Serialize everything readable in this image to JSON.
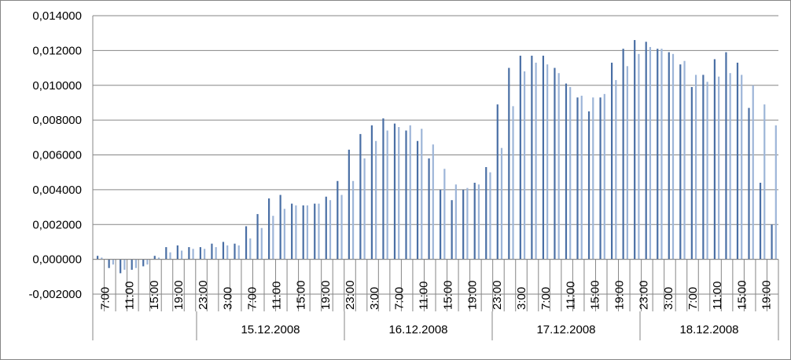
{
  "chart_data": {
    "type": "bar",
    "title": "",
    "xlabel": "",
    "ylabel": "",
    "ylim": [
      -0.002,
      0.014
    ],
    "yticks": [
      "-0,002000",
      "0,000000",
      "0,002000",
      "0,004000",
      "0,006000",
      "0,008000",
      "0,010000",
      "0,012000",
      "0,014000"
    ],
    "grid": "horizontal",
    "legend": "none",
    "hour_tick_labels": [
      "7:00",
      "11:00",
      "15:00",
      "19:00",
      "23:00",
      "3:00",
      "7:00",
      "11:00",
      "15:00",
      "19:00",
      "23:00",
      "3:00",
      "7:00",
      "11:00",
      "15:00",
      "19:00",
      "23:00",
      "3:00",
      "7:00",
      "11:00",
      "15:00",
      "19:00",
      "23:00",
      "3:00",
      "7:00",
      "11:00",
      "15:00",
      "19:00"
    ],
    "date_labels": [
      "15.12.2008",
      "16.12.2008",
      "17.12.2008",
      "18.12.2008"
    ],
    "series": [
      {
        "color": "#4a6fa5",
        "values": [
          0.0002,
          -0.0005,
          -0.0008,
          -0.0006,
          -0.0004,
          0.0002,
          0.0007,
          0.0008,
          0.0007,
          0.0007,
          0.0009,
          0.001,
          0.0009,
          0.0019,
          0.0026,
          0.0035,
          0.0037,
          0.0032,
          0.0031,
          0.0032,
          0.0036,
          0.0045,
          0.0063,
          0.0072,
          0.0077,
          0.0081,
          0.0078,
          0.0074,
          0.0068,
          0.0058,
          0.004,
          0.0034,
          0.004,
          0.0044,
          0.0053,
          0.0089,
          0.011,
          0.0117,
          0.0117,
          0.0117,
          0.011,
          0.0101,
          0.0093,
          0.0085,
          0.0093,
          0.0113,
          0.0121,
          0.0126,
          0.0125,
          0.0121,
          0.0119,
          0.0112,
          0.0099,
          0.0106,
          0.0115,
          0.0119,
          0.0113,
          0.0087,
          0.0044,
          0.002
        ]
      },
      {
        "color": "#9db5d8",
        "values": [
          0.0001,
          -0.0003,
          -0.0006,
          -0.0005,
          -0.0003,
          0.0001,
          0.0004,
          0.0005,
          0.0006,
          0.0006,
          0.0007,
          0.0008,
          0.0008,
          0.0012,
          0.0018,
          0.0025,
          0.0029,
          0.0031,
          0.0031,
          0.0032,
          0.0034,
          0.0037,
          0.0045,
          0.0058,
          0.0068,
          0.0074,
          0.0076,
          0.0077,
          0.0075,
          0.0066,
          0.0052,
          0.0043,
          0.0041,
          0.0043,
          0.005,
          0.0064,
          0.0088,
          0.0108,
          0.0113,
          0.0112,
          0.0107,
          0.0099,
          0.0094,
          0.0093,
          0.0095,
          0.0103,
          0.0111,
          0.0118,
          0.0122,
          0.0121,
          0.0118,
          0.0114,
          0.0106,
          0.0102,
          0.0105,
          0.0107,
          0.0106,
          0.01,
          0.0089,
          0.0077
        ]
      }
    ]
  }
}
